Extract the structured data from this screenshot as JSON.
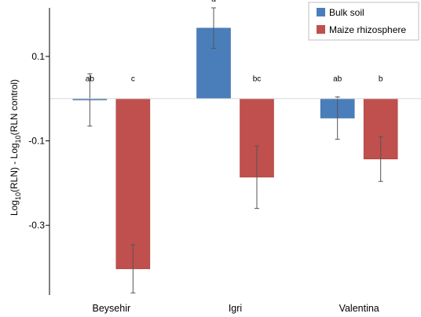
{
  "chart_data": {
    "type": "bar",
    "categories": [
      "Beysehir",
      "Igri",
      "Valentina"
    ],
    "series": [
      {
        "name": "Bulk soil",
        "color": "#4a7ebb",
        "values": [
          -0.003,
          0.167,
          -0.046
        ],
        "error": [
          0.062,
          0.048,
          0.05
        ],
        "letters": [
          "ab",
          "a",
          "ab"
        ]
      },
      {
        "name": "Maize rhizosphere",
        "color": "#c0504d",
        "values": [
          -0.403,
          -0.186,
          -0.143
        ],
        "error": [
          0.057,
          0.074,
          0.053
        ],
        "letters": [
          "c",
          "bc",
          "b"
        ]
      }
    ],
    "ylabel": {
      "pre": "Log",
      "sub1": "10",
      "mid": "(RLN) - Log",
      "sub2": "10",
      "post": "(RLN control)"
    },
    "yticks": [
      0.1,
      -0.1,
      -0.3
    ],
    "ytick_labels": [
      "0.1",
      "-0.1",
      "-0.3"
    ],
    "ylim": [
      -0.465,
      0.215
    ],
    "legend": {
      "position": "top-right"
    },
    "grid": false
  }
}
